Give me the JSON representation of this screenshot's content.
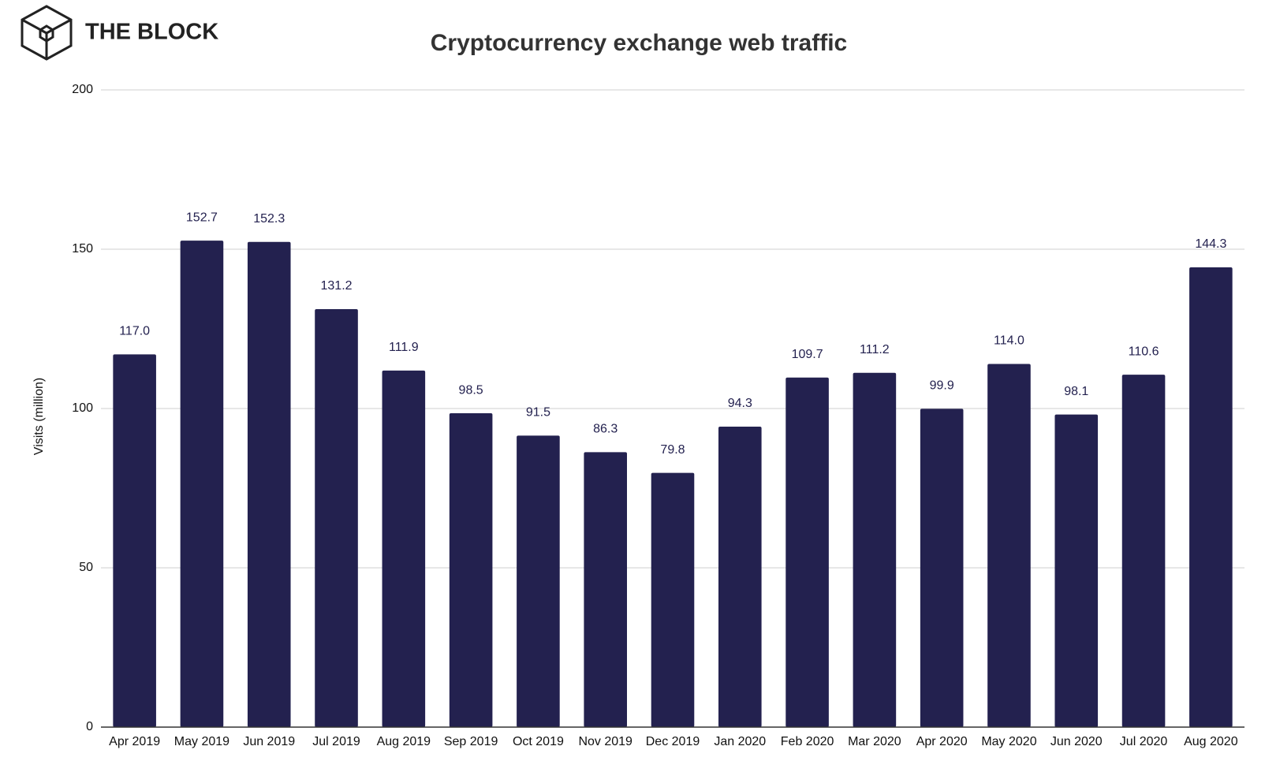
{
  "logo": "THE BLOCK",
  "chart_data": {
    "type": "bar",
    "title": "Cryptocurrency exchange web traffic",
    "y_label": "Visits (million)",
    "categories": [
      "Apr 2019",
      "May 2019",
      "Jun 2019",
      "Jul 2019",
      "Aug 2019",
      "Sep 2019",
      "Oct 2019",
      "Nov 2019",
      "Dec 2019",
      "Jan 2020",
      "Feb 2020",
      "Mar 2020",
      "Apr 2020",
      "May 2020",
      "Jun 2020",
      "Jul 2020",
      "Aug 2020"
    ],
    "values": [
      117.0,
      152.7,
      152.3,
      131.2,
      111.9,
      98.5,
      91.5,
      86.3,
      79.8,
      94.3,
      109.7,
      111.2,
      99.9,
      114.0,
      98.1,
      110.6,
      144.3
    ],
    "value_labels": [
      "117.0",
      "152.7",
      "152.3",
      "131.2",
      "111.9",
      "98.5",
      "91.5",
      "86.3",
      "79.8",
      "94.3",
      "109.7",
      "111.2",
      "99.9",
      "114.0",
      "98.1",
      "110.6",
      "144.3"
    ],
    "color": "#23214f",
    "ylim": [
      0,
      200
    ],
    "yticks": [
      0,
      50,
      100,
      150,
      200
    ],
    "grid": true
  }
}
